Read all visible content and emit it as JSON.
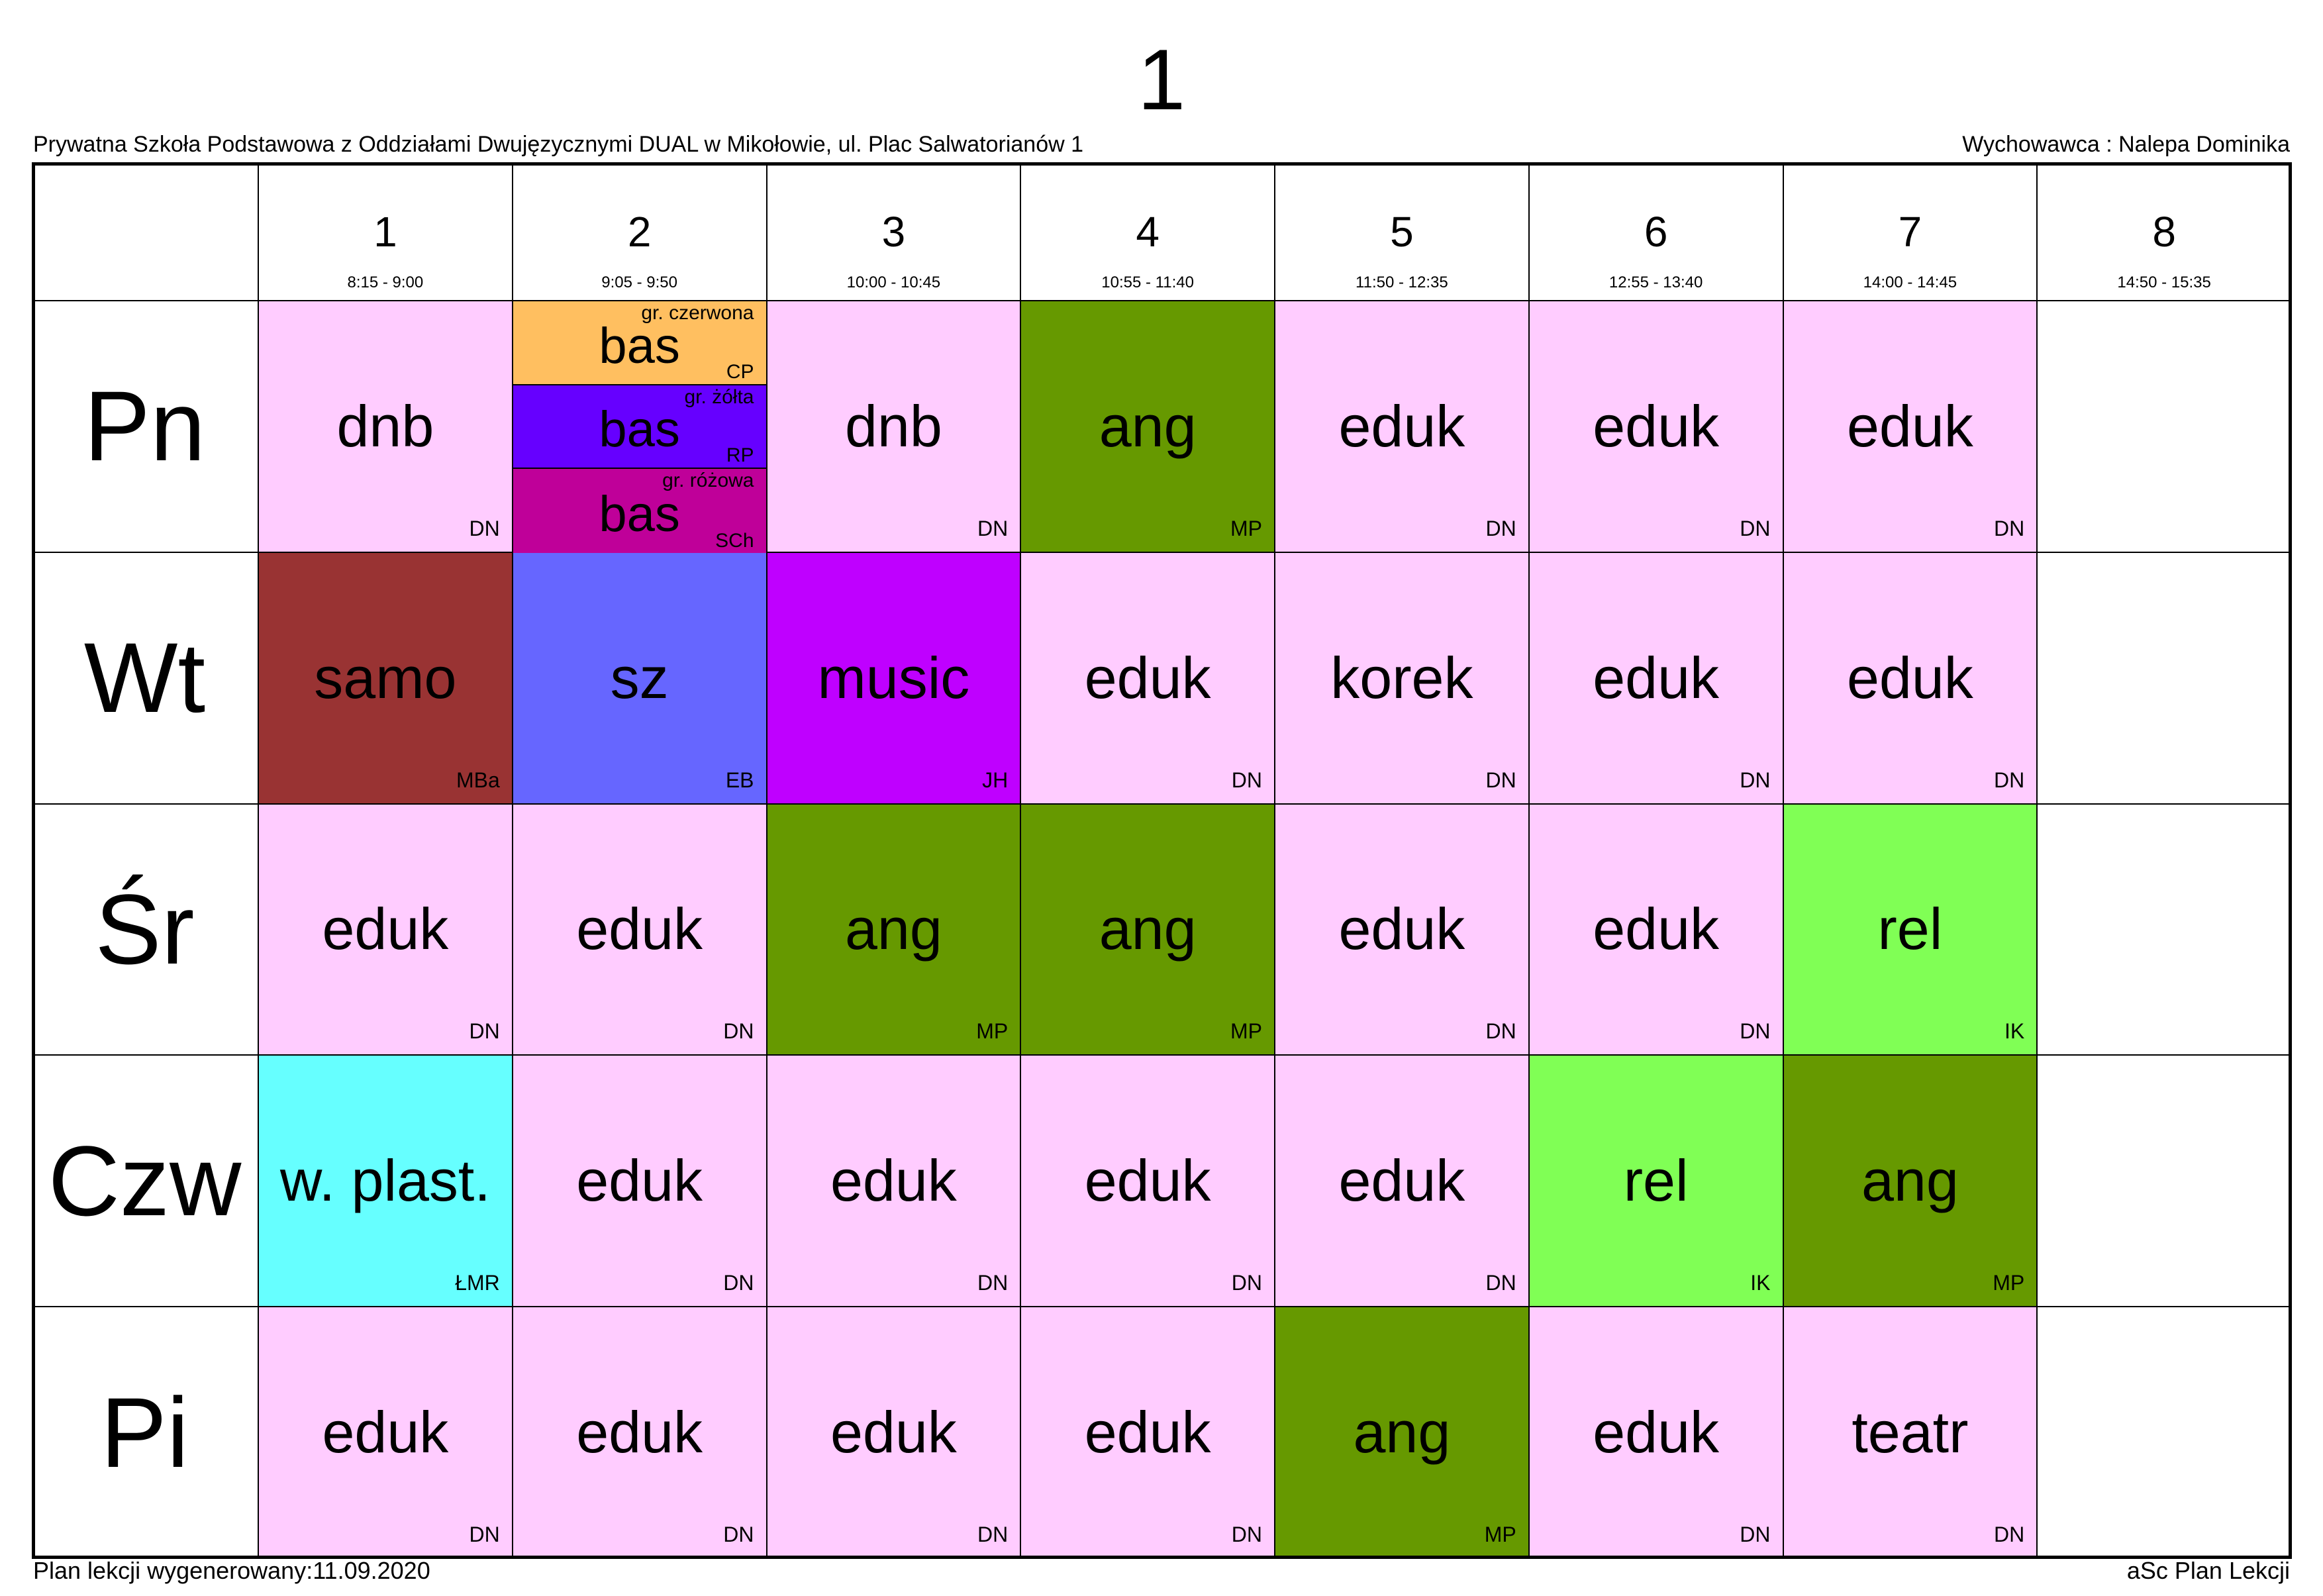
{
  "header": {
    "title": "1",
    "school": "Prywatna Szkoła Podstawowa z Oddziałami Dwujęzycznymi DUAL w Mikołowie, ul. Plac Salwatorianów 1",
    "class_teacher": "Wychowawca : Nalepa Dominika"
  },
  "footer": {
    "generated": "Plan lekcji wygenerowany:11.09.2020",
    "app": "aSc Plan Lekcji"
  },
  "periods": [
    {
      "num": "1",
      "time": "8:15 - 9:00"
    },
    {
      "num": "2",
      "time": "9:05 - 9:50"
    },
    {
      "num": "3",
      "time": "10:00 - 10:45"
    },
    {
      "num": "4",
      "time": "10:55 - 11:40"
    },
    {
      "num": "5",
      "time": "11:50 - 12:35"
    },
    {
      "num": "6",
      "time": "12:55 - 13:40"
    },
    {
      "num": "7",
      "time": "14:00 - 14:45"
    },
    {
      "num": "8",
      "time": "14:50 - 15:35"
    }
  ],
  "colors": {
    "edu_pink": "#ffccff",
    "ang_green": "#669900",
    "rel_green": "#80ff55",
    "samo": "#993333",
    "sz": "#6666ff",
    "music": "#bf00ff",
    "plast": "#66ffff",
    "gr_czerwona": "#ffbf60",
    "gr_zolta": "#6600ff",
    "gr_rozowa": "#bf0099",
    "empty": "#ffffff"
  },
  "days": [
    {
      "name": "Pn",
      "lessons": [
        {
          "subject": "dnb",
          "teacher": "DN",
          "color": "#ffccff"
        },
        {
          "groups": [
            {
              "group": "gr. czerwona",
              "subject": "bas",
              "teacher": "CP",
              "color": "#ffbf60"
            },
            {
              "group": "gr. żółta",
              "subject": "bas",
              "teacher": "RP",
              "color": "#6600ff"
            },
            {
              "group": "gr. różowa",
              "subject": "bas",
              "teacher": "SCh",
              "color": "#bf0099"
            }
          ]
        },
        {
          "subject": "dnb",
          "teacher": "DN",
          "color": "#ffccff"
        },
        {
          "subject": "ang",
          "teacher": "MP",
          "color": "#669900"
        },
        {
          "subject": "eduk",
          "teacher": "DN",
          "color": "#ffccff"
        },
        {
          "subject": "eduk",
          "teacher": "DN",
          "color": "#ffccff"
        },
        {
          "subject": "eduk",
          "teacher": "DN",
          "color": "#ffccff"
        },
        {}
      ]
    },
    {
      "name": "Wt",
      "lessons": [
        {
          "subject": "samo",
          "teacher": "MBa",
          "color": "#993333"
        },
        {
          "subject": "sz",
          "teacher": "EB",
          "color": "#6666ff"
        },
        {
          "subject": "music",
          "teacher": "JH",
          "color": "#bf00ff"
        },
        {
          "subject": "eduk",
          "teacher": "DN",
          "color": "#ffccff"
        },
        {
          "subject": "korek",
          "teacher": "DN",
          "color": "#ffccff"
        },
        {
          "subject": "eduk",
          "teacher": "DN",
          "color": "#ffccff"
        },
        {
          "subject": "eduk",
          "teacher": "DN",
          "color": "#ffccff"
        },
        {}
      ]
    },
    {
      "name": "Śr",
      "lessons": [
        {
          "subject": "eduk",
          "teacher": "DN",
          "color": "#ffccff"
        },
        {
          "subject": "eduk",
          "teacher": "DN",
          "color": "#ffccff"
        },
        {
          "subject": "ang",
          "teacher": "MP",
          "color": "#669900"
        },
        {
          "subject": "ang",
          "teacher": "MP",
          "color": "#669900"
        },
        {
          "subject": "eduk",
          "teacher": "DN",
          "color": "#ffccff"
        },
        {
          "subject": "eduk",
          "teacher": "DN",
          "color": "#ffccff"
        },
        {
          "subject": "rel",
          "teacher": "IK",
          "color": "#80ff55"
        },
        {}
      ]
    },
    {
      "name": "Czw",
      "lessons": [
        {
          "subject": "w. plast.",
          "teacher": "ŁMR",
          "color": "#66ffff"
        },
        {
          "subject": "eduk",
          "teacher": "DN",
          "color": "#ffccff"
        },
        {
          "subject": "eduk",
          "teacher": "DN",
          "color": "#ffccff"
        },
        {
          "subject": "eduk",
          "teacher": "DN",
          "color": "#ffccff"
        },
        {
          "subject": "eduk",
          "teacher": "DN",
          "color": "#ffccff"
        },
        {
          "subject": "rel",
          "teacher": "IK",
          "color": "#80ff55"
        },
        {
          "subject": "ang",
          "teacher": "MP",
          "color": "#669900"
        },
        {}
      ]
    },
    {
      "name": "Pi",
      "lessons": [
        {
          "subject": "eduk",
          "teacher": "DN",
          "color": "#ffccff"
        },
        {
          "subject": "eduk",
          "teacher": "DN",
          "color": "#ffccff"
        },
        {
          "subject": "eduk",
          "teacher": "DN",
          "color": "#ffccff"
        },
        {
          "subject": "eduk",
          "teacher": "DN",
          "color": "#ffccff"
        },
        {
          "subject": "ang",
          "teacher": "MP",
          "color": "#669900"
        },
        {
          "subject": "eduk",
          "teacher": "DN",
          "color": "#ffccff"
        },
        {
          "subject": "teatr",
          "teacher": "DN",
          "color": "#ffccff"
        },
        {}
      ]
    }
  ]
}
